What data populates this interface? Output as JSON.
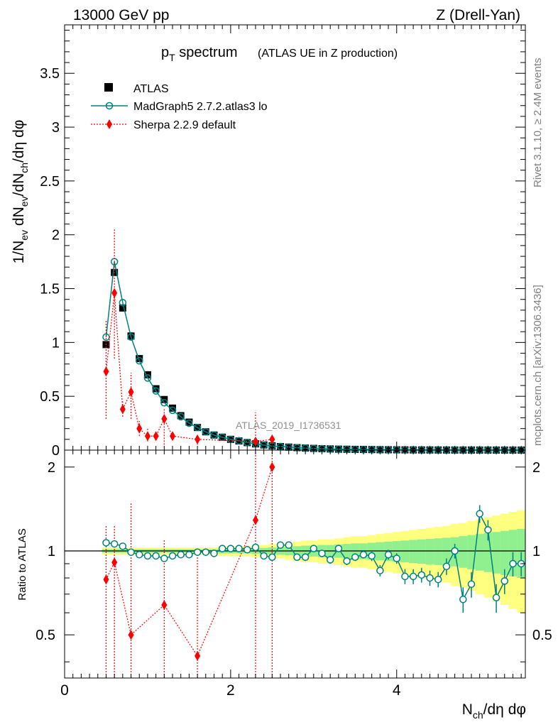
{
  "header": {
    "left": "13000 GeV pp",
    "right": "Z (Drell-Yan)"
  },
  "side_labels": {
    "rivet": "Rivet 3.1.10, ≥ 2.4M events",
    "mcplots": "mcplots.cern.ch [arXiv:1306.3436]"
  },
  "watermark": "ATLAS_2019_I1736531",
  "colors": {
    "atlas": "#000000",
    "madgraph": "#008080",
    "sherpa": "#ff0000",
    "band_yellow": "#ffff80",
    "band_green": "#90f090"
  },
  "chart_data": [
    {
      "type": "scatter",
      "panel": "main",
      "title": "p_T spectrum",
      "title_main": "p",
      "title_sub": "T",
      "title_rest": " spectrum",
      "subtitle": "(ATLAS UE in Z production)",
      "ylabel_parts": [
        "1/N",
        "ev",
        " dN",
        "ev",
        "/dN",
        "ch",
        "/dη dφ"
      ],
      "xlim": [
        0,
        5.55
      ],
      "ylim": [
        0,
        3.95
      ],
      "y_ticks": [
        0,
        0.5,
        1,
        1.5,
        2,
        2.5,
        3,
        3.5
      ],
      "y_tick_labels": [
        "0",
        "0.5",
        "1",
        "1.5",
        "2",
        "2.5",
        "3",
        "3.5"
      ],
      "legend": [
        {
          "name": "ATLAS",
          "marker": "square-icon"
        },
        {
          "name": "MadGraph5 2.7.2.atlas3 lo",
          "marker": "open-circle-icon"
        },
        {
          "name": "Sherpa 2.2.9 default",
          "marker": "diamond-icon"
        }
      ],
      "series": [
        {
          "name": "ATLAS",
          "x": [
            0.5,
            0.6,
            0.7,
            0.8,
            0.9,
            1.0,
            1.1,
            1.2,
            1.3,
            1.4,
            1.5,
            1.6,
            1.7,
            1.8,
            1.9,
            2.0,
            2.1,
            2.2,
            2.3,
            2.4,
            2.5,
            2.6,
            2.7,
            2.8,
            2.9,
            3.0,
            3.1,
            3.2,
            3.3,
            3.4,
            3.5,
            3.6,
            3.7,
            3.8,
            3.9,
            4.0,
            4.1,
            4.2,
            4.3,
            4.4,
            4.5,
            4.6,
            4.7,
            4.8,
            4.9,
            5.0,
            5.1,
            5.2,
            5.3,
            5.4,
            5.5
          ],
          "y": [
            0.98,
            1.65,
            1.32,
            1.06,
            0.85,
            0.7,
            0.57,
            0.47,
            0.39,
            0.32,
            0.26,
            0.21,
            0.17,
            0.14,
            0.12,
            0.1,
            0.085,
            0.07,
            0.058,
            0.048,
            0.04,
            0.033,
            0.028,
            0.023,
            0.019,
            0.016,
            0.013,
            0.011,
            0.009,
            0.008,
            0.007,
            0.006,
            0.005,
            0.004,
            0.0035,
            0.003,
            0.0025,
            0.002,
            0.0017,
            0.0015,
            0.0013,
            0.0011,
            0.001,
            0.0009,
            0.0008,
            0.0007,
            0.0006,
            0.0005,
            0.0004,
            0.0004,
            0.0003
          ]
        },
        {
          "name": "MadGraph5 2.7.2.atlas3 lo",
          "x": [
            0.5,
            0.6,
            0.7,
            0.8,
            0.9,
            1.0,
            1.1,
            1.2,
            1.3,
            1.4,
            1.5,
            1.6,
            1.7,
            1.8,
            1.9,
            2.0,
            2.1,
            2.2,
            2.3,
            2.4,
            2.5,
            2.6,
            2.7,
            2.8,
            2.9,
            3.0,
            3.1,
            3.2,
            3.3,
            3.4,
            3.5,
            3.6,
            3.7,
            3.8,
            3.9,
            4.0,
            4.1,
            4.2,
            4.3,
            4.4,
            4.5,
            4.6,
            4.7,
            4.8,
            4.9,
            5.0,
            5.1,
            5.2,
            5.3,
            5.4,
            5.5
          ],
          "y": [
            1.05,
            1.75,
            1.37,
            1.05,
            0.83,
            0.67,
            0.55,
            0.44,
            0.37,
            0.31,
            0.25,
            0.21,
            0.17,
            0.14,
            0.12,
            0.1,
            0.087,
            0.071,
            0.059,
            0.046,
            0.038,
            0.034,
            0.029,
            0.022,
            0.018,
            0.016,
            0.013,
            0.01,
            0.009,
            0.007,
            0.007,
            0.006,
            0.005,
            0.0035,
            0.0034,
            0.0029,
            0.002,
            0.0017,
            0.0014,
            0.0012,
            0.001,
            0.0009,
            0.0008,
            0.0006,
            0.0006,
            0.0007,
            0.0007,
            0.0004,
            0.0003,
            0.0003,
            0.0003
          ],
          "x_err_connect": true
        },
        {
          "name": "Sherpa 2.2.9 default",
          "x": [
            0.5,
            0.6,
            0.7,
            0.8,
            0.9,
            1.0,
            1.1,
            1.2,
            1.3,
            1.6,
            2.3,
            2.5
          ],
          "y": [
            0.73,
            1.46,
            0.38,
            0.54,
            0.2,
            0.13,
            0.13,
            0.29,
            0.13,
            0.1,
            0.08,
            0.1
          ],
          "y_low": [
            0.29,
            0.85,
            0.31,
            0.29,
            0.13,
            0.08,
            0.09,
            0.05,
            0.09,
            0.05,
            0.0,
            0.0
          ],
          "y_high": [
            1.2,
            2.06,
            0.45,
            0.72,
            0.27,
            0.2,
            0.17,
            0.38,
            0.17,
            0.14,
            0.35,
            0.12
          ]
        }
      ]
    },
    {
      "type": "scatter",
      "panel": "ratio",
      "ylabel": "Ratio to ATLAS",
      "xlabel_parts": [
        "N",
        "ch",
        "/dη dφ"
      ],
      "xlim": [
        0,
        5.55
      ],
      "ylim": [
        0.35,
        2.3
      ],
      "y_scale": "log",
      "x_ticks": [
        0,
        2,
        4
      ],
      "x_tick_labels": [
        "0",
        "2",
        "4"
      ],
      "y_ticks": [
        0.5,
        1,
        2
      ],
      "y_tick_labels": [
        "0.5",
        "1",
        "2"
      ],
      "bands": {
        "x": [
          0.5,
          0.6,
          0.7,
          0.8,
          0.9,
          1.0,
          1.1,
          1.2,
          1.3,
          1.4,
          1.5,
          1.6,
          1.7,
          1.8,
          1.9,
          2.0,
          2.1,
          2.2,
          2.3,
          2.4,
          2.5,
          2.6,
          2.7,
          2.8,
          2.9,
          3.0,
          3.1,
          3.2,
          3.3,
          3.4,
          3.5,
          3.6,
          3.7,
          3.8,
          3.9,
          4.0,
          4.1,
          4.2,
          4.3,
          4.4,
          4.5,
          4.6,
          4.7,
          4.8,
          4.9,
          5.0,
          5.1,
          5.2,
          5.3,
          5.4,
          5.5
        ],
        "yellow_half": [
          0.03,
          0.03,
          0.03,
          0.03,
          0.03,
          0.03,
          0.03,
          0.03,
          0.03,
          0.03,
          0.03,
          0.03,
          0.03,
          0.03,
          0.04,
          0.04,
          0.04,
          0.04,
          0.05,
          0.05,
          0.06,
          0.06,
          0.07,
          0.08,
          0.09,
          0.09,
          0.1,
          0.1,
          0.11,
          0.12,
          0.13,
          0.13,
          0.14,
          0.15,
          0.16,
          0.17,
          0.18,
          0.19,
          0.2,
          0.21,
          0.22,
          0.23,
          0.25,
          0.26,
          0.28,
          0.3,
          0.32,
          0.34,
          0.36,
          0.38,
          0.4
        ],
        "green_half": [
          0.015,
          0.015,
          0.015,
          0.015,
          0.015,
          0.015,
          0.015,
          0.015,
          0.015,
          0.015,
          0.015,
          0.015,
          0.015,
          0.015,
          0.02,
          0.02,
          0.02,
          0.02,
          0.025,
          0.025,
          0.03,
          0.03,
          0.035,
          0.04,
          0.045,
          0.045,
          0.05,
          0.05,
          0.055,
          0.06,
          0.065,
          0.065,
          0.07,
          0.075,
          0.08,
          0.085,
          0.09,
          0.095,
          0.1,
          0.105,
          0.11,
          0.115,
          0.12,
          0.13,
          0.14,
          0.15,
          0.16,
          0.17,
          0.18,
          0.19,
          0.2
        ]
      },
      "series": [
        {
          "name": "MadGraph5 2.7.2.atlas3 lo",
          "x": [
            0.5,
            0.6,
            0.7,
            0.8,
            0.9,
            1.0,
            1.1,
            1.2,
            1.3,
            1.4,
            1.5,
            1.6,
            1.7,
            1.8,
            1.9,
            2.0,
            2.1,
            2.2,
            2.3,
            2.4,
            2.5,
            2.6,
            2.7,
            2.8,
            2.9,
            3.0,
            3.1,
            3.2,
            3.3,
            3.4,
            3.5,
            3.6,
            3.7,
            3.8,
            3.9,
            4.0,
            4.1,
            4.2,
            4.3,
            4.4,
            4.5,
            4.6,
            4.7,
            4.8,
            4.9,
            5.0,
            5.1,
            5.2,
            5.3,
            5.4,
            5.5
          ],
          "y": [
            1.07,
            1.06,
            1.04,
            0.99,
            0.97,
            0.96,
            0.96,
            0.94,
            0.96,
            0.97,
            0.97,
            0.99,
            0.99,
            0.98,
            1.02,
            1.02,
            1.02,
            1.01,
            1.03,
            0.96,
            0.95,
            1.05,
            1.05,
            0.95,
            0.95,
            1.02,
            0.98,
            0.93,
            1.02,
            0.92,
            0.95,
            0.97,
            0.96,
            0.85,
            0.97,
            0.94,
            0.81,
            0.81,
            0.82,
            0.8,
            0.79,
            0.88,
            1.0,
            0.67,
            0.76,
            1.36,
            1.19,
            0.68,
            0.78,
            0.9,
            0.9
          ],
          "err": [
            0.01,
            0.01,
            0.01,
            0.01,
            0.01,
            0.01,
            0.01,
            0.01,
            0.01,
            0.01,
            0.01,
            0.01,
            0.01,
            0.01,
            0.02,
            0.02,
            0.02,
            0.02,
            0.02,
            0.02,
            0.02,
            0.02,
            0.02,
            0.02,
            0.03,
            0.03,
            0.03,
            0.03,
            0.03,
            0.03,
            0.03,
            0.03,
            0.04,
            0.04,
            0.04,
            0.04,
            0.05,
            0.05,
            0.05,
            0.05,
            0.05,
            0.06,
            0.06,
            0.07,
            0.08,
            0.1,
            0.1,
            0.08,
            0.08,
            0.09,
            0.09
          ]
        },
        {
          "name": "Sherpa 2.2.9 default",
          "x": [
            0.5,
            0.6,
            0.8,
            1.2,
            1.6,
            2.3,
            2.5
          ],
          "y": [
            0.79,
            0.91,
            0.5,
            0.64,
            0.42,
            1.29,
            2.0
          ],
          "y_low": [
            0.3,
            0.3,
            0.3,
            0.3,
            0.3,
            0.3,
            0.3
          ],
          "y_high": [
            1.24,
            1.24,
            1.5,
            1.1,
            1.0,
            3.0,
            3.0
          ]
        }
      ]
    }
  ]
}
